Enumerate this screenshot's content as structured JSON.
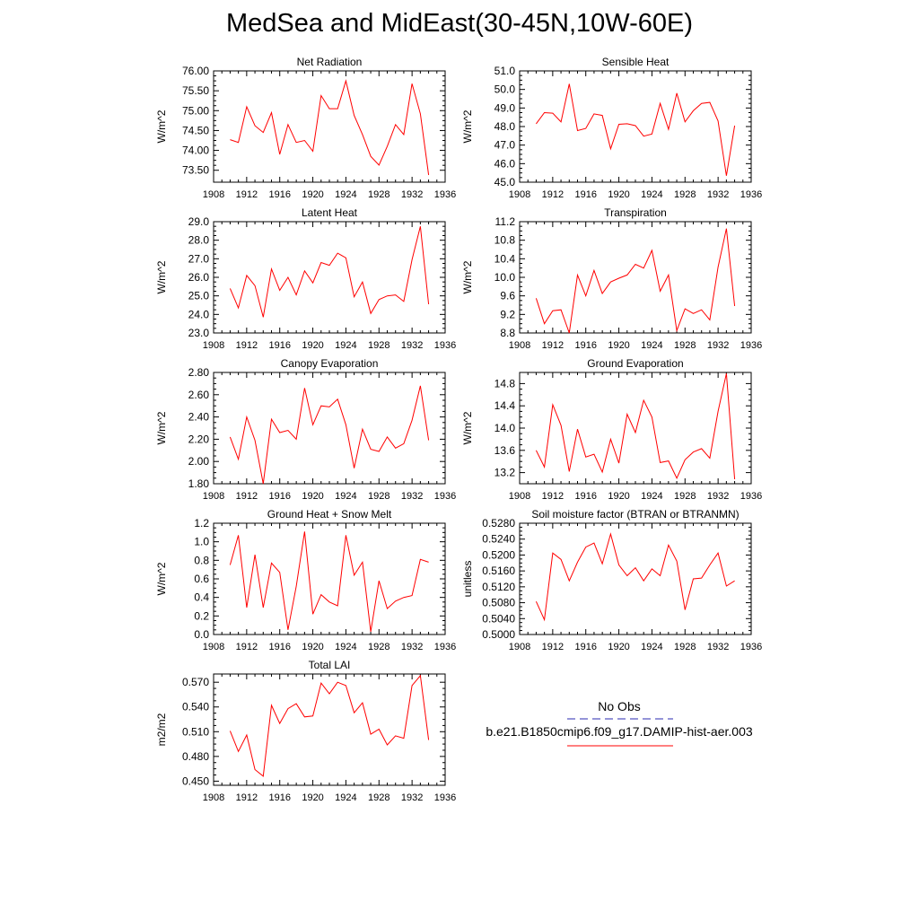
{
  "title": "MedSea and MidEast(30-45N,10W-60E)",
  "series_color": "#ff0000",
  "obs_color": "#2a2ab0",
  "legend": {
    "obs_label": "No Obs",
    "model_label": "b.e21.B1850cmip6.f09_g17.DAMIP-hist-aer.003"
  },
  "chart_data": [
    {
      "type": "line",
      "title": "Net Radiation",
      "ylabel": "W/m^2",
      "xlim": [
        1908,
        1936
      ],
      "xticks": [
        1908,
        1912,
        1916,
        1920,
        1924,
        1928,
        1932,
        1936
      ],
      "ylim": [
        73.2,
        76.0
      ],
      "yticks": [
        73.5,
        74.0,
        74.5,
        75.0,
        75.5,
        76.0
      ],
      "ytick_labels": [
        "73.50",
        "74.00",
        "74.50",
        "75.00",
        "75.50",
        "76.00"
      ],
      "x": [
        1910,
        1911,
        1912,
        1913,
        1914,
        1915,
        1916,
        1917,
        1918,
        1919,
        1920,
        1921,
        1922,
        1923,
        1924,
        1925,
        1926,
        1927,
        1928,
        1929,
        1930,
        1931,
        1932,
        1933,
        1934
      ],
      "values": [
        74.27,
        74.2,
        75.1,
        74.62,
        74.45,
        74.95,
        73.9,
        74.65,
        74.2,
        74.25,
        73.98,
        75.38,
        75.05,
        75.05,
        75.75,
        74.88,
        74.4,
        73.85,
        73.63,
        74.1,
        74.65,
        74.4,
        75.68,
        74.92,
        73.38
      ]
    },
    {
      "type": "line",
      "title": "Sensible Heat",
      "ylabel": "W/m^2",
      "xlim": [
        1908,
        1936
      ],
      "xticks": [
        1908,
        1912,
        1916,
        1920,
        1924,
        1928,
        1932,
        1936
      ],
      "ylim": [
        45.0,
        51.0
      ],
      "yticks": [
        45,
        46,
        47,
        48,
        49,
        50,
        51
      ],
      "ytick_labels": [
        "45.0",
        "46.0",
        "47.0",
        "48.0",
        "49.0",
        "50.0",
        "51.0"
      ],
      "x": [
        1910,
        1911,
        1912,
        1913,
        1914,
        1915,
        1916,
        1917,
        1918,
        1919,
        1920,
        1921,
        1922,
        1923,
        1924,
        1925,
        1926,
        1927,
        1928,
        1929,
        1930,
        1931,
        1932,
        1933,
        1934
      ],
      "values": [
        48.15,
        48.75,
        48.72,
        48.25,
        50.3,
        47.78,
        47.9,
        48.68,
        48.6,
        46.8,
        48.12,
        48.15,
        48.05,
        47.48,
        47.6,
        49.25,
        47.85,
        49.8,
        48.25,
        48.85,
        49.25,
        49.3,
        48.3,
        45.35,
        48.05
      ]
    },
    {
      "type": "line",
      "title": "Latent Heat",
      "ylabel": "W/m^2",
      "xlim": [
        1908,
        1936
      ],
      "xticks": [
        1908,
        1912,
        1916,
        1920,
        1924,
        1928,
        1932,
        1936
      ],
      "ylim": [
        23.0,
        29.0
      ],
      "yticks": [
        23,
        24,
        25,
        26,
        27,
        28,
        29
      ],
      "ytick_labels": [
        "23.0",
        "24.0",
        "25.0",
        "26.0",
        "27.0",
        "28.0",
        "29.0"
      ],
      "x": [
        1910,
        1911,
        1912,
        1913,
        1914,
        1915,
        1916,
        1917,
        1918,
        1919,
        1920,
        1921,
        1922,
        1923,
        1924,
        1925,
        1926,
        1927,
        1928,
        1929,
        1930,
        1931,
        1932,
        1933,
        1934
      ],
      "values": [
        25.4,
        24.35,
        26.1,
        25.55,
        23.85,
        26.45,
        25.3,
        26.0,
        25.05,
        26.35,
        25.7,
        26.8,
        26.65,
        27.3,
        27.05,
        24.95,
        25.75,
        24.05,
        24.8,
        25.0,
        25.05,
        24.7,
        26.95,
        28.75,
        24.55
      ]
    },
    {
      "type": "line",
      "title": "Transpiration",
      "ylabel": "W/m^2",
      "xlim": [
        1908,
        1936
      ],
      "xticks": [
        1908,
        1912,
        1916,
        1920,
        1924,
        1928,
        1932,
        1936
      ],
      "ylim": [
        8.8,
        11.2
      ],
      "yticks": [
        8.8,
        9.2,
        9.6,
        10.0,
        10.4,
        10.8,
        11.2
      ],
      "ytick_labels": [
        "8.8",
        "9.2",
        "9.6",
        "10.0",
        "10.4",
        "10.8",
        "11.2"
      ],
      "x": [
        1910,
        1911,
        1912,
        1913,
        1914,
        1915,
        1916,
        1917,
        1918,
        1919,
        1920,
        1921,
        1922,
        1923,
        1924,
        1925,
        1926,
        1927,
        1928,
        1929,
        1930,
        1931,
        1932,
        1933,
        1934
      ],
      "values": [
        9.55,
        9.0,
        9.28,
        9.3,
        8.8,
        10.05,
        9.6,
        10.15,
        9.65,
        9.9,
        9.98,
        10.05,
        10.28,
        10.2,
        10.58,
        9.7,
        10.05,
        8.85,
        9.32,
        9.22,
        9.3,
        9.08,
        10.22,
        11.05,
        9.38
      ]
    },
    {
      "type": "line",
      "title": "Canopy Evaporation",
      "ylabel": "W/m^2",
      "xlim": [
        1908,
        1936
      ],
      "xticks": [
        1908,
        1912,
        1916,
        1920,
        1924,
        1928,
        1932,
        1936
      ],
      "ylim": [
        1.8,
        2.8
      ],
      "yticks": [
        1.8,
        2.0,
        2.2,
        2.4,
        2.6,
        2.8
      ],
      "ytick_labels": [
        "1.80",
        "2.00",
        "2.20",
        "2.40",
        "2.60",
        "2.80"
      ],
      "x": [
        1910,
        1911,
        1912,
        1913,
        1914,
        1915,
        1916,
        1917,
        1918,
        1919,
        1920,
        1921,
        1922,
        1923,
        1924,
        1925,
        1926,
        1927,
        1928,
        1929,
        1930,
        1931,
        1932,
        1933,
        1934
      ],
      "values": [
        2.22,
        2.02,
        2.4,
        2.19,
        1.8,
        2.38,
        2.26,
        2.28,
        2.2,
        2.66,
        2.33,
        2.5,
        2.49,
        2.56,
        2.33,
        1.94,
        2.29,
        2.11,
        2.09,
        2.22,
        2.12,
        2.16,
        2.37,
        2.68,
        2.19
      ]
    },
    {
      "type": "line",
      "title": "Ground Evaporation",
      "ylabel": "W/m^2",
      "xlim": [
        1908,
        1936
      ],
      "xticks": [
        1908,
        1912,
        1916,
        1920,
        1924,
        1928,
        1932,
        1936
      ],
      "ylim": [
        13.0,
        15.0
      ],
      "yticks": [
        13.2,
        13.6,
        14.0,
        14.4,
        14.8
      ],
      "ytick_labels": [
        "13.2",
        "13.6",
        "14.0",
        "14.4",
        "14.8"
      ],
      "x": [
        1910,
        1911,
        1912,
        1913,
        1914,
        1915,
        1916,
        1917,
        1918,
        1919,
        1920,
        1921,
        1922,
        1923,
        1924,
        1925,
        1926,
        1927,
        1928,
        1929,
        1930,
        1931,
        1932,
        1933,
        1934
      ],
      "values": [
        13.6,
        13.3,
        14.42,
        14.05,
        13.22,
        13.98,
        13.48,
        13.53,
        13.21,
        13.8,
        13.37,
        14.25,
        13.92,
        14.5,
        14.2,
        13.38,
        13.41,
        13.1,
        13.43,
        13.57,
        13.63,
        13.46,
        14.3,
        14.98,
        13.08
      ]
    },
    {
      "type": "line",
      "title": "Ground Heat + Snow Melt",
      "ylabel": "W/m^2",
      "xlim": [
        1908,
        1936
      ],
      "xticks": [
        1908,
        1912,
        1916,
        1920,
        1924,
        1928,
        1932,
        1936
      ],
      "ylim": [
        0.0,
        1.2
      ],
      "yticks": [
        0.0,
        0.2,
        0.4,
        0.6,
        0.8,
        1.0,
        1.2
      ],
      "ytick_labels": [
        "0.0",
        "0.2",
        "0.4",
        "0.6",
        "0.8",
        "1.0",
        "1.2"
      ],
      "x": [
        1910,
        1911,
        1912,
        1913,
        1914,
        1915,
        1916,
        1917,
        1918,
        1919,
        1920,
        1921,
        1922,
        1923,
        1924,
        1925,
        1926,
        1927,
        1928,
        1929,
        1930,
        1931,
        1932,
        1933,
        1934
      ],
      "values": [
        0.75,
        1.07,
        0.29,
        0.86,
        0.29,
        0.77,
        0.67,
        0.05,
        0.52,
        1.11,
        0.22,
        0.43,
        0.35,
        0.31,
        1.07,
        0.64,
        0.78,
        0.03,
        0.58,
        0.28,
        0.36,
        0.4,
        0.42,
        0.81,
        0.78
      ]
    },
    {
      "type": "line",
      "title": "Soil moisture factor (BTRAN or BTRANMN)",
      "ylabel": "unitless",
      "xlim": [
        1908,
        1936
      ],
      "xticks": [
        1908,
        1912,
        1916,
        1920,
        1924,
        1928,
        1932,
        1936
      ],
      "ylim": [
        0.5,
        0.528
      ],
      "yticks": [
        0.5,
        0.504,
        0.508,
        0.512,
        0.516,
        0.52,
        0.524,
        0.528
      ],
      "ytick_labels": [
        "0.5000",
        "0.5040",
        "0.5080",
        "0.5120",
        "0.5160",
        "0.5200",
        "0.5240",
        "0.5280"
      ],
      "x": [
        1910,
        1911,
        1912,
        1913,
        1914,
        1915,
        1916,
        1917,
        1918,
        1919,
        1920,
        1921,
        1922,
        1923,
        1924,
        1925,
        1926,
        1927,
        1928,
        1929,
        1930,
        1931,
        1932,
        1933,
        1934
      ],
      "values": [
        0.5083,
        0.5037,
        0.5205,
        0.5189,
        0.5135,
        0.5182,
        0.522,
        0.523,
        0.5178,
        0.5253,
        0.5175,
        0.5148,
        0.5168,
        0.5135,
        0.5165,
        0.5148,
        0.5225,
        0.5185,
        0.5062,
        0.514,
        0.5142,
        0.5175,
        0.5205,
        0.5122,
        0.5135
      ]
    },
    {
      "type": "line",
      "title": "Total LAI",
      "ylabel": "m2/m2",
      "xlim": [
        1908,
        1936
      ],
      "xticks": [
        1908,
        1912,
        1916,
        1920,
        1924,
        1928,
        1932,
        1936
      ],
      "ylim": [
        0.445,
        0.58
      ],
      "yticks": [
        0.45,
        0.48,
        0.51,
        0.54,
        0.57
      ],
      "ytick_labels": [
        "0.450",
        "0.480",
        "0.510",
        "0.540",
        "0.570"
      ],
      "x": [
        1910,
        1911,
        1912,
        1913,
        1914,
        1915,
        1916,
        1917,
        1918,
        1919,
        1920,
        1921,
        1922,
        1923,
        1924,
        1925,
        1926,
        1927,
        1928,
        1929,
        1930,
        1931,
        1932,
        1933,
        1934
      ],
      "values": [
        0.511,
        0.486,
        0.506,
        0.464,
        0.456,
        0.542,
        0.52,
        0.538,
        0.544,
        0.528,
        0.529,
        0.569,
        0.556,
        0.57,
        0.566,
        0.533,
        0.545,
        0.507,
        0.513,
        0.494,
        0.505,
        0.502,
        0.566,
        0.578,
        0.5
      ]
    }
  ]
}
